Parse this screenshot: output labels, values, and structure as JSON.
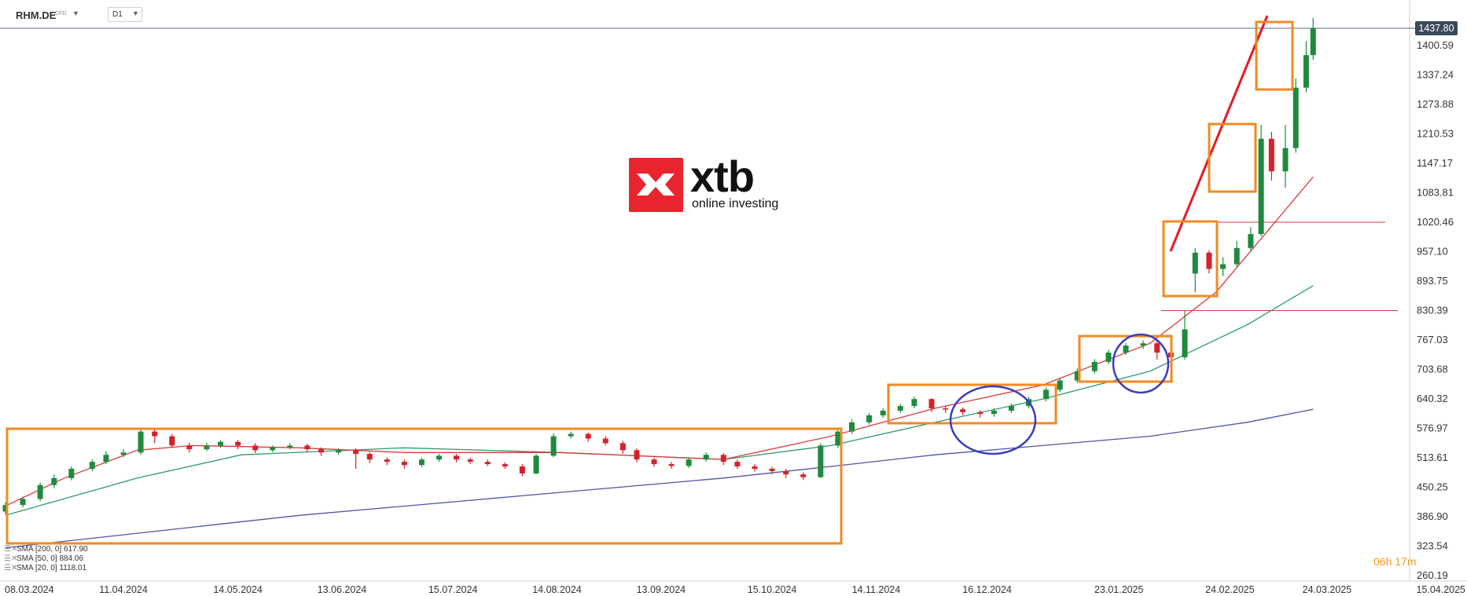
{
  "header": {
    "symbol": "RHM.DE",
    "symbol_type": "CFD",
    "timeframe": "D1"
  },
  "price_tag": "1437.80",
  "logo": {
    "word": "xtb",
    "tagline": "online investing"
  },
  "indicators": [
    {
      "label": "SMA [200, 0] 617.90",
      "color": "#5154a4"
    },
    {
      "label": "SMA [50, 0] 884.06",
      "color": "#2e9b6a"
    },
    {
      "label": "SMA [20, 0] 1118.01",
      "color": "#d93c3c"
    }
  ],
  "session_timer": "06h 17m",
  "chart_data": {
    "type": "candlestick",
    "yaxis": {
      "ticks": [
        "1400.59",
        "1337.24",
        "1273.88",
        "1210.53",
        "1147.17",
        "1083.81",
        "1020.46",
        "957.10",
        "893.75",
        "830.39",
        "767.03",
        "703.68",
        "640.32",
        "576.97",
        "513.61",
        "450.25",
        "386.90",
        "323.54",
        "260.19"
      ],
      "range": [
        260.19,
        1460
      ]
    },
    "xaxis": {
      "ticks": [
        "08.03.2024",
        "11.04.2024",
        "14.05.2024",
        "13.06.2024",
        "15.07.2024",
        "14.08.2024",
        "13.09.2024",
        "15.10.2024",
        "14.11.2024",
        "16.12.2024",
        "23.01.2025",
        "24.02.2025",
        "24.03.2025",
        "15.04.2025"
      ],
      "range": [
        "2024-03-08",
        "2025-04-15"
      ]
    },
    "last_price": 1437.8,
    "horizontal_levels": [
      1020.46,
      830.39
    ],
    "series": [
      {
        "name": "SMA [200, 0]",
        "color": "#5154a4",
        "x": [
          "2024-03-08",
          "2024-06-01",
          "2024-08-01",
          "2024-10-01",
          "2024-11-01",
          "2024-12-01",
          "2025-01-01",
          "2025-02-01",
          "2025-03-01",
          "2025-03-20"
        ],
        "y": [
          320,
          390,
          430,
          470,
          495,
          520,
          540,
          560,
          590,
          618
        ]
      },
      {
        "name": "SMA [50, 0]",
        "color": "#2e9b6a",
        "x": [
          "2024-03-08",
          "2024-04-15",
          "2024-05-15",
          "2024-07-01",
          "2024-08-15",
          "2024-10-01",
          "2024-11-01",
          "2024-12-01",
          "2025-01-01",
          "2025-02-01",
          "2025-03-01",
          "2025-03-20"
        ],
        "y": [
          390,
          470,
          520,
          535,
          525,
          510,
          540,
          590,
          640,
          700,
          800,
          884
        ]
      },
      {
        "name": "SMA [20, 0]",
        "color": "#d93c3c",
        "x": [
          "2024-03-08",
          "2024-03-25",
          "2024-04-15",
          "2024-05-01",
          "2024-06-01",
          "2024-07-01",
          "2024-08-15",
          "2024-10-01",
          "2024-11-01",
          "2024-12-01",
          "2025-01-01",
          "2025-02-01",
          "2025-02-20",
          "2025-03-20"
        ],
        "y": [
          410,
          470,
          530,
          540,
          535,
          525,
          525,
          510,
          560,
          620,
          670,
          760,
          870,
          1118
        ]
      }
    ],
    "candles": [
      [
        "2024-03-08",
        398,
        412,
        392,
        418
      ],
      [
        "2024-03-13",
        412,
        425,
        407,
        430
      ],
      [
        "2024-03-18",
        425,
        455,
        420,
        460
      ],
      [
        "2024-03-22",
        455,
        470,
        448,
        478
      ],
      [
        "2024-03-27",
        470,
        490,
        465,
        495
      ],
      [
        "2024-04-02",
        490,
        505,
        485,
        510
      ],
      [
        "2024-04-06",
        505,
        520,
        500,
        528
      ],
      [
        "2024-04-11",
        520,
        525,
        515,
        532
      ],
      [
        "2024-04-16",
        525,
        570,
        520,
        575
      ],
      [
        "2024-04-20",
        570,
        560,
        545,
        574
      ],
      [
        "2024-04-25",
        560,
        540,
        535,
        565
      ],
      [
        "2024-04-30",
        540,
        532,
        525,
        546
      ],
      [
        "2024-05-05",
        532,
        540,
        528,
        546
      ],
      [
        "2024-05-09",
        540,
        548,
        535,
        552
      ],
      [
        "2024-05-14",
        548,
        540,
        532,
        552
      ],
      [
        "2024-05-19",
        540,
        530,
        524,
        545
      ],
      [
        "2024-05-24",
        530,
        536,
        526,
        540
      ],
      [
        "2024-05-29",
        536,
        540,
        532,
        545
      ],
      [
        "2024-06-03",
        540,
        532,
        526,
        544
      ],
      [
        "2024-06-07",
        532,
        525,
        518,
        536
      ],
      [
        "2024-06-12",
        525,
        530,
        520,
        534
      ],
      [
        "2024-06-17",
        530,
        522,
        490,
        534
      ],
      [
        "2024-06-21",
        522,
        510,
        502,
        526
      ],
      [
        "2024-06-26",
        510,
        505,
        498,
        514
      ],
      [
        "2024-07-01",
        505,
        498,
        490,
        510
      ],
      [
        "2024-07-06",
        498,
        510,
        494,
        514
      ],
      [
        "2024-07-11",
        510,
        518,
        505,
        522
      ],
      [
        "2024-07-16",
        518,
        510,
        504,
        522
      ],
      [
        "2024-07-20",
        510,
        505,
        500,
        514
      ],
      [
        "2024-07-25",
        505,
        500,
        496,
        510
      ],
      [
        "2024-07-30",
        500,
        495,
        490,
        504
      ],
      [
        "2024-08-04",
        495,
        480,
        474,
        500
      ],
      [
        "2024-08-08",
        480,
        518,
        478,
        522
      ],
      [
        "2024-08-13",
        518,
        560,
        515,
        566
      ],
      [
        "2024-08-18",
        560,
        565,
        555,
        570
      ],
      [
        "2024-08-23",
        565,
        555,
        548,
        568
      ],
      [
        "2024-08-28",
        555,
        545,
        540,
        560
      ],
      [
        "2024-09-02",
        545,
        530,
        522,
        550
      ],
      [
        "2024-09-06",
        530,
        510,
        504,
        534
      ],
      [
        "2024-09-11",
        510,
        500,
        494,
        514
      ],
      [
        "2024-09-16",
        500,
        496,
        490,
        505
      ],
      [
        "2024-09-21",
        496,
        510,
        492,
        514
      ],
      [
        "2024-09-26",
        510,
        520,
        505,
        525
      ],
      [
        "2024-10-01",
        520,
        505,
        498,
        524
      ],
      [
        "2024-10-05",
        505,
        495,
        490,
        510
      ],
      [
        "2024-10-10",
        495,
        490,
        484,
        500
      ],
      [
        "2024-10-15",
        490,
        485,
        478,
        494
      ],
      [
        "2024-10-19",
        485,
        478,
        470,
        490
      ],
      [
        "2024-10-24",
        478,
        472,
        466,
        482
      ],
      [
        "2024-10-29",
        472,
        540,
        470,
        545
      ],
      [
        "2024-11-03",
        540,
        570,
        535,
        575
      ],
      [
        "2024-11-07",
        570,
        590,
        565,
        596
      ],
      [
        "2024-11-12",
        590,
        605,
        585,
        610
      ],
      [
        "2024-11-16",
        605,
        615,
        600,
        620
      ],
      [
        "2024-11-21",
        615,
        625,
        610,
        630
      ],
      [
        "2024-11-25",
        625,
        640,
        620,
        645
      ],
      [
        "2024-11-30",
        640,
        620,
        612,
        642
      ],
      [
        "2024-12-04",
        620,
        618,
        610,
        625
      ],
      [
        "2024-12-09",
        618,
        612,
        605,
        622
      ],
      [
        "2024-12-14",
        612,
        608,
        600,
        616
      ],
      [
        "2024-12-18",
        608,
        615,
        602,
        620
      ],
      [
        "2024-12-23",
        615,
        625,
        610,
        630
      ],
      [
        "2024-12-28",
        625,
        640,
        620,
        645
      ],
      [
        "2025-01-02",
        640,
        660,
        635,
        665
      ],
      [
        "2025-01-06",
        660,
        680,
        655,
        686
      ],
      [
        "2025-01-11",
        680,
        700,
        675,
        706
      ],
      [
        "2025-01-16",
        700,
        720,
        695,
        726
      ],
      [
        "2025-01-20",
        720,
        740,
        715,
        746
      ],
      [
        "2025-01-25",
        740,
        755,
        735,
        760
      ],
      [
        "2025-01-30",
        755,
        760,
        748,
        766
      ],
      [
        "2025-02-03",
        760,
        740,
        725,
        765
      ],
      [
        "2025-02-07",
        740,
        730,
        722,
        745
      ],
      [
        "2025-02-11",
        730,
        790,
        725,
        830
      ],
      [
        "2025-02-14",
        910,
        955,
        870,
        965
      ],
      [
        "2025-02-18",
        955,
        920,
        910,
        960
      ],
      [
        "2025-02-22",
        920,
        930,
        905,
        945
      ],
      [
        "2025-02-26",
        930,
        965,
        925,
        980
      ],
      [
        "2025-03-02",
        965,
        995,
        960,
        1010
      ],
      [
        "2025-03-05",
        995,
        1200,
        990,
        1230
      ],
      [
        "2025-03-08",
        1200,
        1130,
        1110,
        1215
      ],
      [
        "2025-03-12",
        1130,
        1180,
        1095,
        1230
      ],
      [
        "2025-03-15",
        1180,
        1310,
        1170,
        1330
      ],
      [
        "2025-03-18",
        1310,
        1380,
        1300,
        1410
      ],
      [
        "2025-03-20",
        1380,
        1437.8,
        1370,
        1460
      ]
    ]
  }
}
